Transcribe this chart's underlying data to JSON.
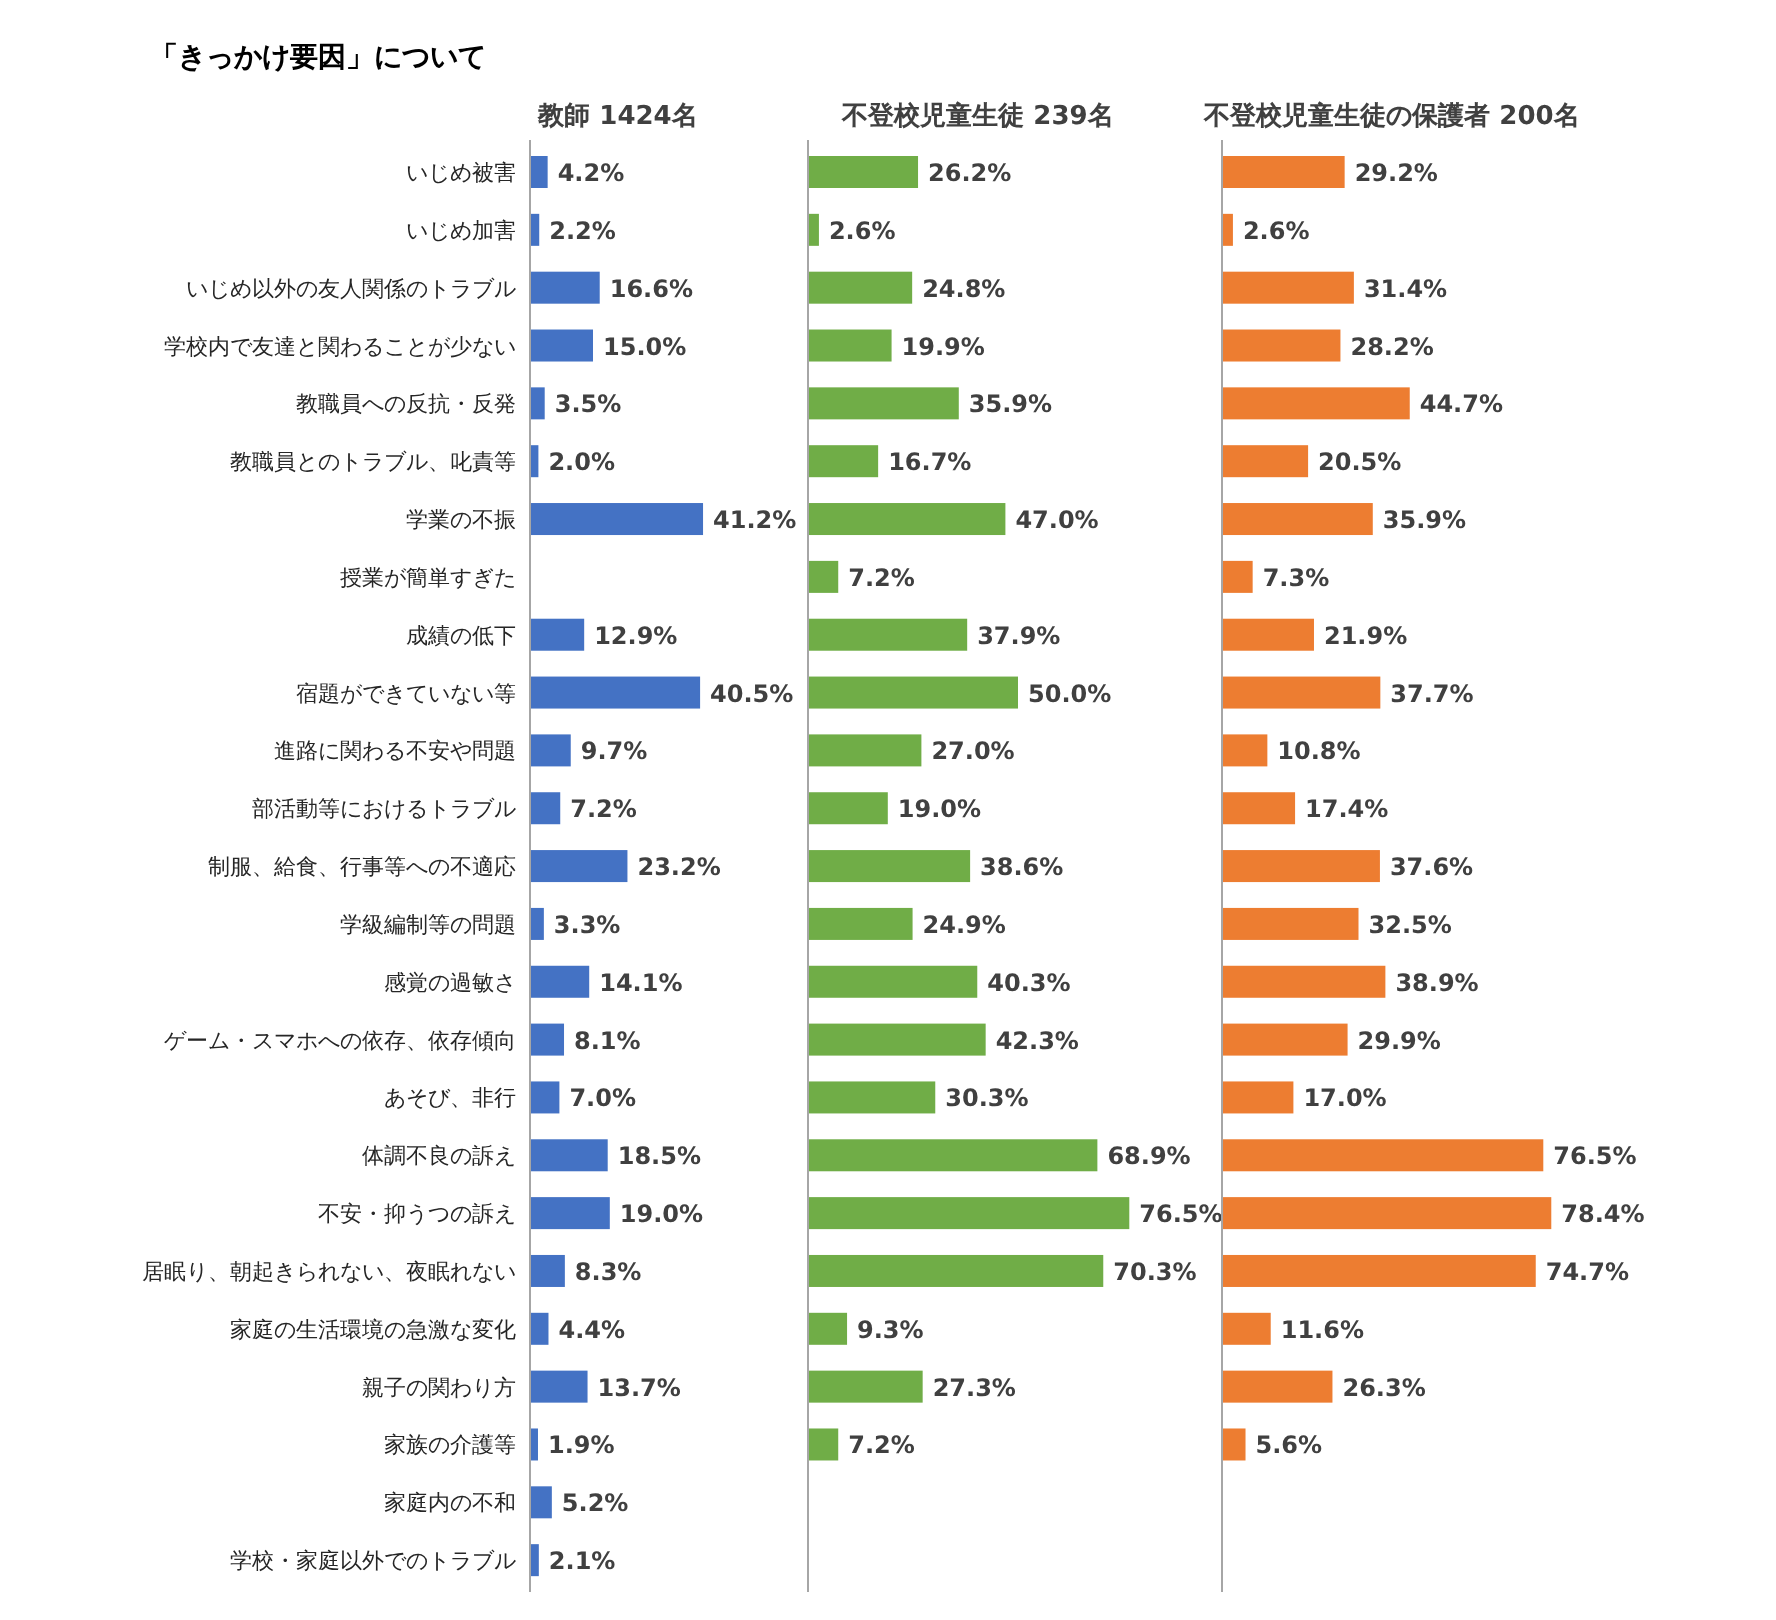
{
  "chart_data": [
    {
      "type": "bar",
      "orientation": "horizontal",
      "title": "「きっかけ要因」について",
      "subtitle": "教師 1424名",
      "tick_labels": "y",
      "categories": [
        "いじめ被害",
        "いじめ加害",
        "いじめ以外の友人関係のトラブル",
        "学校内で友達と関わることが少ない",
        "教職員への反抗・反発",
        "教職員とのトラブル、叱責等",
        "学業の不振",
        "授業が簡単すぎた",
        "成績の低下",
        "宿題ができていない等",
        "進路に関わる不安や問題",
        "部活動等におけるトラブル",
        "制服、給食、行事等への不適応",
        "学級編制等の問題",
        "感覚の過敏さ",
        "ゲーム・スマホへの依存、依存傾向",
        "あそび、非行",
        "体調不良の訴え",
        "不安・抑うつの訴え",
        "居眠り、朝起きられない、夜眠れない",
        "家庭の生活環境の急激な変化",
        "親子の関わり方",
        "家族の介護等",
        "家庭内の不和",
        "学校・家庭以外でのトラブル"
      ],
      "series": [
        {
          "color": "#4472c4",
          "values": [
            4.2,
            2.2,
            16.6,
            15.0,
            3.5,
            2.0,
            41.2,
            null,
            12.9,
            40.5,
            9.7,
            7.2,
            23.2,
            3.3,
            14.1,
            8.1,
            7.0,
            18.5,
            19.0,
            8.3,
            4.4,
            13.7,
            1.9,
            5.2,
            2.1
          ],
          "value_labels": [
            "4.2%",
            "2.2%",
            "16.6%",
            "15.0%",
            "3.5%",
            "2.0%",
            "41.2%",
            null,
            "12.9%",
            "40.5%",
            "9.7%",
            "7.2%",
            "23.2%",
            "3.3%",
            "14.1%",
            "8.1%",
            "7.0%",
            "18.5%",
            "19.0%",
            "8.3%",
            "4.4%",
            "13.7%",
            "1.9%",
            "5.2%",
            "2.1%"
          ]
        }
      ]
    },
    {
      "type": "bar",
      "orientation": "horizontal",
      "subtitle": "不登校児童生徒 239名",
      "tick_labels": false,
      "categories": [
        null,
        null,
        null,
        null,
        null,
        null,
        null,
        null,
        null,
        null,
        null,
        null,
        null,
        null,
        null,
        null,
        null,
        null,
        null,
        null,
        null,
        null,
        null,
        null,
        null
      ],
      "series": [
        {
          "color": "#70ad47",
          "values": [
            26.2,
            2.6,
            24.8,
            19.9,
            35.9,
            16.7,
            47.0,
            7.2,
            37.9,
            50.0,
            27.0,
            19.0,
            38.6,
            24.9,
            40.3,
            42.3,
            30.3,
            68.9,
            76.5,
            70.3,
            9.3,
            27.3,
            7.2,
            null,
            null
          ],
          "value_labels": [
            "26.2%",
            "2.6%",
            "24.8%",
            "19.9%",
            "35.9%",
            "16.7%",
            "47.0%",
            "7.2%",
            "37.9%",
            "50.0%",
            "27.0%",
            "19.0%",
            "38.6%",
            "24.9%",
            "40.3%",
            "42.3%",
            "30.3%",
            "68.9%",
            "76.5%",
            "70.3%",
            "9.3%",
            "27.3%",
            "7.2%",
            null,
            null
          ]
        }
      ]
    },
    {
      "type": "bar",
      "orientation": "horizontal",
      "subtitle": "不登校児童生徒の保護者 200名",
      "tick_labels": false,
      "categories": [
        null,
        null,
        null,
        null,
        null,
        null,
        null,
        null,
        null,
        null,
        null,
        null,
        null,
        null,
        null,
        null,
        null,
        null,
        null,
        null,
        null,
        null,
        null,
        null,
        null
      ],
      "series": [
        {
          "color": "#ed7d31",
          "values": [
            29.2,
            2.6,
            31.4,
            28.2,
            44.7,
            20.5,
            35.9,
            7.3,
            21.9,
            37.7,
            10.8,
            17.4,
            37.6,
            32.5,
            38.9,
            29.9,
            17.0,
            76.5,
            78.4,
            74.7,
            11.6,
            26.3,
            5.6,
            null,
            null
          ],
          "value_labels": [
            "29.2%",
            "2.6%",
            "31.4%",
            "28.2%",
            "44.7%",
            "20.5%",
            "35.9%",
            "7.3%",
            "21.9%",
            "37.7%",
            "10.8%",
            "17.4%",
            "37.6%",
            "32.5%",
            "38.9%",
            "29.9%",
            "17.0%",
            "76.5%",
            "78.4%",
            "74.7%",
            "11.6%",
            "26.3%",
            "5.6%",
            null,
            null
          ]
        }
      ]
    }
  ]
}
